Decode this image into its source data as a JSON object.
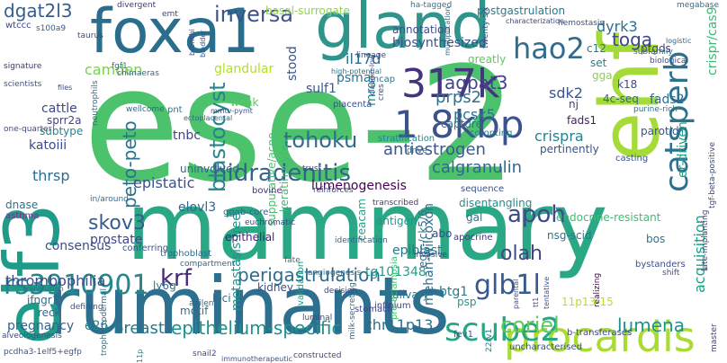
{
  "words": [
    {
      "text": "ese-2",
      "color": "#4cc26c"
    },
    {
      "text": "mammary",
      "color": "#2aa784"
    },
    {
      "text": "ruminants",
      "color": "#2c6f8e"
    },
    {
      "text": "gland",
      "color": "#2f958c"
    },
    {
      "text": "foxa1",
      "color": "#2a6e8d"
    },
    {
      "text": "elf3",
      "color": "#1f9b8a"
    },
    {
      "text": "ehf",
      "color": "#a5db36"
    },
    {
      "text": "317k",
      "color": "#46337e"
    },
    {
      "text": "procardis",
      "color": "#a9dc33"
    },
    {
      "text": "catsperb",
      "color": "#2c728e"
    },
    {
      "text": "hao2",
      "color": "#2f6c8e"
    },
    {
      "text": "rs3910901",
      "color": "#24868e"
    },
    {
      "text": "1 8kbp",
      "color": "#3b528b"
    },
    {
      "text": "hidradenitis",
      "color": "#33628d"
    },
    {
      "text": "glb1l",
      "color": "#38598c"
    },
    {
      "text": "scube2",
      "color": "#22a884"
    },
    {
      "text": "breast",
      "color": "#2a788e"
    },
    {
      "text": "epithelium-specific",
      "color": "#21918c"
    },
    {
      "text": "perigastrulation",
      "color": "#2f6b8e"
    },
    {
      "text": "coriel",
      "color": "#5ec962"
    },
    {
      "text": "lumena",
      "color": "#20928c"
    },
    {
      "text": "apoh",
      "color": "#3e4a89"
    },
    {
      "text": "olah",
      "color": "#3f4788"
    },
    {
      "text": "tohoku",
      "color": "#2e6f8e"
    },
    {
      "text": "antiestrogen",
      "color": "#38588c"
    },
    {
      "text": "krf",
      "color": "#482878"
    },
    {
      "text": "thrombophilia",
      "color": "#3e4c8a"
    },
    {
      "text": "skov3",
      "color": "#365c8d"
    },
    {
      "text": "inversa",
      "color": "#3b528b"
    },
    {
      "text": "dgat2l3",
      "color": "#355f8d"
    },
    {
      "text": "blastocyst",
      "color": "#25848e"
    },
    {
      "text": "peto-peto",
      "color": "#2c728e"
    },
    {
      "text": "agpat3",
      "color": "#414487"
    },
    {
      "text": "prps2",
      "color": "#2d718e"
    },
    {
      "text": "pcsk5",
      "color": "#2b758e"
    },
    {
      "text": "sdk2",
      "color": "#3a548c"
    },
    {
      "text": "toga",
      "color": "#3f4889"
    },
    {
      "text": "dyrk3",
      "color": "#2e6e8e"
    },
    {
      "text": "crispra",
      "color": "#27808e"
    },
    {
      "text": "calgranulin",
      "color": "#31688e"
    },
    {
      "text": "lumenogenesis",
      "color": "#440154"
    },
    {
      "text": "epistatic",
      "color": "#3b518b"
    },
    {
      "text": "camden",
      "color": "#7ad151"
    },
    {
      "text": "cattle",
      "color": "#3e4989"
    },
    {
      "text": "katoiii",
      "color": "#3e4989"
    },
    {
      "text": "thrsp",
      "color": "#2e6d8e"
    },
    {
      "text": "tnbc",
      "color": "#414487"
    },
    {
      "text": "consensus",
      "color": "#3d4d8a"
    },
    {
      "text": "prostate",
      "color": "#3f4788"
    },
    {
      "text": "elovl3",
      "color": "#31678e"
    },
    {
      "text": "stood",
      "color": "#3a538b"
    },
    {
      "text": "sulf1",
      "color": "#38588c"
    },
    {
      "text": "il17d",
      "color": "#2d708e"
    },
    {
      "text": "psma",
      "color": "#2c728e"
    },
    {
      "text": "mro",
      "color": "#24878e"
    },
    {
      "text": "metastasis-free",
      "color": "#21918c"
    },
    {
      "text": "tg101348",
      "color": "#1f9e89"
    },
    {
      "text": "btg1",
      "color": "#2a778e"
    },
    {
      "text": "acquisition",
      "color": "#1fa088"
    },
    {
      "text": "er-driven",
      "color": "#1fa187"
    },
    {
      "text": "crispr/cas9",
      "color": "#3aba76"
    },
    {
      "text": "epiblast",
      "color": "#2a788e"
    },
    {
      "text": "mehan-wilcoxon",
      "color": "#2f6c8e"
    },
    {
      "text": "e26",
      "color": "#25838e"
    },
    {
      "text": "chr11p13",
      "color": "#2e6e8e"
    },
    {
      "text": "biosynthesized",
      "color": "#3b518b"
    },
    {
      "text": "annotation",
      "color": "#3e4c8a"
    },
    {
      "text": "basal-surrogate",
      "color": "#8fd744"
    },
    {
      "text": "glandular",
      "color": "#b5de2b"
    },
    {
      "text": "sprr2a",
      "color": "#3f4788"
    },
    {
      "text": "subtype",
      "color": "#24868e"
    },
    {
      "text": "fads2",
      "color": "#2f6b8e"
    },
    {
      "text": "fads1",
      "color": "#481a6c"
    },
    {
      "text": "nj",
      "color": "#443a83"
    },
    {
      "text": "parotid",
      "color": "#3b528b"
    },
    {
      "text": "postgastrulation",
      "color": "#2a788e"
    },
    {
      "text": "c12",
      "color": "#2a778e"
    },
    {
      "text": "ptgds",
      "color": "#433e85"
    },
    {
      "text": "set",
      "color": "#26828e"
    },
    {
      "text": "k18",
      "color": "#3f4889"
    },
    {
      "text": "4c-seq",
      "color": "#31688e"
    },
    {
      "text": "suppurative/acne",
      "color": "#48c16e"
    },
    {
      "text": "keratinocytes",
      "color": "#3cbb75"
    },
    {
      "text": "antigen",
      "color": "#1f968b"
    },
    {
      "text": "uninvolved",
      "color": "#32658e"
    },
    {
      "text": "dnase",
      "color": "#2c728e"
    },
    {
      "text": "weak",
      "color": "#5ec962"
    },
    {
      "text": "pertinently",
      "color": "#3b528b"
    },
    {
      "text": "ceacam",
      "color": "#21a585"
    },
    {
      "text": "disentangling",
      "color": "#228c8d"
    },
    {
      "text": "nsg-scid",
      "color": "#2b758e"
    },
    {
      "text": "endocrine-resistant",
      "color": "#3fbc73"
    },
    {
      "text": "bos",
      "color": "#2b748e"
    },
    {
      "text": "psp",
      "color": "#1f9a8a"
    },
    {
      "text": "11p13-15",
      "color": "#b8de29"
    },
    {
      "text": "egfr-/ck5/6",
      "color": "#2e6f8e"
    },
    {
      "text": "infinium",
      "color": "#414487"
    },
    {
      "text": "salivary",
      "color": "#2a778e"
    },
    {
      "text": "fev1",
      "color": "#39558c"
    },
    {
      "text": "pregnancy",
      "color": "#33638d"
    },
    {
      "text": "reck",
      "color": "#2f6b8e"
    },
    {
      "text": "ifngr1",
      "color": "#2e6e8e"
    },
    {
      "text": "ly6g",
      "color": "#2c728e"
    },
    {
      "text": "loci",
      "color": "#2c718e"
    },
    {
      "text": "motif",
      "color": "#2d708e"
    },
    {
      "text": "kidney",
      "color": "#3d4e8a"
    },
    {
      "text": "stomach",
      "color": "#404688"
    },
    {
      "text": "trophoblast",
      "color": "#2f6c8e"
    },
    {
      "text": "epithelial",
      "color": "#481f70"
    },
    {
      "text": "bovine",
      "color": "#45337d"
    },
    {
      "text": "gal",
      "color": "#2c728e"
    },
    {
      "text": "apocrine",
      "color": "#453781"
    },
    {
      "text": "abo",
      "color": "#3f4788"
    },
    {
      "text": "capture",
      "color": "#2b748e"
    },
    {
      "text": "co-opting",
      "color": "#27808e"
    },
    {
      "text": "casting",
      "color": "#3b528b"
    },
    {
      "text": "bystanders",
      "color": "#3d4e8a"
    },
    {
      "text": "b-transferases",
      "color": "#404688"
    },
    {
      "text": "uncharacterised",
      "color": "#3e4a89"
    },
    {
      "text": "wtccc",
      "color": "#3f4788"
    },
    {
      "text": "s100a9",
      "color": "#38598c"
    },
    {
      "text": "one-quarter",
      "color": "#3e4c8a"
    },
    {
      "text": "scientists",
      "color": "#3b528b"
    },
    {
      "text": "asthma",
      "color": "#7d2f8a"
    },
    {
      "text": "alveologenesis",
      "color": "#3e4a89"
    },
    {
      "text": "pcdha3-1elf5+egfp",
      "color": "#3b528b"
    },
    {
      "text": "wellcome",
      "color": "#31688e"
    },
    {
      "text": "pnt",
      "color": "#2a788e"
    },
    {
      "text": "fgf1",
      "color": "#2d718e"
    },
    {
      "text": "chimaeras",
      "color": "#32658e"
    },
    {
      "text": "signature",
      "color": "#46307e"
    },
    {
      "text": "neutrophils",
      "color": "#2e6e8e"
    },
    {
      "text": "taurus",
      "color": "#3e4c8a"
    },
    {
      "text": "divergent",
      "color": "#453781"
    },
    {
      "text": "emt",
      "color": "#433e85"
    },
    {
      "text": "placenta",
      "color": "#3b528b"
    },
    {
      "text": "lineage",
      "color": "#3e4989"
    },
    {
      "text": "trust",
      "color": "#3f4788"
    },
    {
      "text": "stratification",
      "color": "#24868e"
    },
    {
      "text": "fate",
      "color": "#2a788e"
    },
    {
      "text": "validation",
      "color": "#1f9a8a"
    },
    {
      "text": "angiogenesis",
      "color": "#2c728e"
    },
    {
      "text": "decision",
      "color": "#3e4989"
    },
    {
      "text": "conferring",
      "color": "#3b528b"
    },
    {
      "text": "compartment",
      "color": "#31688e"
    },
    {
      "text": "identification",
      "color": "#33638d"
    },
    {
      "text": "invasive",
      "color": "#414487"
    },
    {
      "text": "defining",
      "color": "#3b528b"
    },
    {
      "text": "milk-secreting",
      "color": "#2f6c8e"
    },
    {
      "text": "agilent",
      "color": "#32658e"
    },
    {
      "text": "constructed",
      "color": "#414487"
    },
    {
      "text": "snail2",
      "color": "#3e4a89"
    },
    {
      "text": "22rv1",
      "color": "#2a788e"
    },
    {
      "text": "shift",
      "color": "#3b528b"
    },
    {
      "text": "realizing",
      "color": "#440154"
    },
    {
      "text": "megabase",
      "color": "#2e6e8e"
    },
    {
      "text": "hemostasis",
      "color": "#3b528b"
    },
    {
      "text": "logistic",
      "color": "#31688e"
    },
    {
      "text": "biological",
      "color": "#3e4a89"
    },
    {
      "text": "purine-rich",
      "color": "#2c728e"
    },
    {
      "text": "late-implanting",
      "color": "#414487"
    },
    {
      "text": "tgf-beta-positive",
      "color": "#3e4c8a"
    },
    {
      "text": "subfamily",
      "color": "#2a788e"
    },
    {
      "text": "greatly",
      "color": "#5ec962"
    },
    {
      "text": "gga",
      "color": "#86d549"
    },
    {
      "text": "ggab-core",
      "color": "#31688e"
    },
    {
      "text": "euchromatic",
      "color": "#414487"
    },
    {
      "text": "pre-eclampsia",
      "color": "#3fbc73"
    },
    {
      "text": "sequence",
      "color": "#3b528b"
    },
    {
      "text": "transcribed",
      "color": "#453781"
    },
    {
      "text": "reinforces",
      "color": "#3e4989"
    },
    {
      "text": "drive",
      "color": "#2e6e8e"
    },
    {
      "text": "in/around",
      "color": "#2e6e8e"
    },
    {
      "text": "bronchi",
      "color": "#3e4a89"
    },
    {
      "text": "bladder",
      "color": "#3b528b"
    },
    {
      "text": "characterization",
      "color": "#404688"
    },
    {
      "text": "high-potential",
      "color": "#2c728e"
    },
    {
      "text": "ectoplacental",
      "color": "#2f6c8e"
    },
    {
      "text": "mmtv-pymt",
      "color": "#3b528b"
    },
    {
      "text": "multiplication",
      "color": "#31688e"
    },
    {
      "text": "ha-tagged",
      "color": "#2a788e"
    },
    {
      "text": "twenty-six",
      "color": "#3e4c8a"
    },
    {
      "text": "lncap",
      "color": "#2c728e"
    },
    {
      "text": "claudin-low",
      "color": "#414487"
    },
    {
      "text": "cres",
      "color": "#3b528b"
    },
    {
      "text": "transfusion",
      "color": "#31688e"
    },
    {
      "text": "luminal",
      "color": "#3e4989"
    },
    {
      "text": "trophectodermal",
      "color": "#2e6e8e"
    },
    {
      "text": "immunotherapeutic",
      "color": "#3b528b"
    },
    {
      "text": "master",
      "color": "#414487"
    },
    {
      "text": "parental",
      "color": "#3e4c8a"
    },
    {
      "text": "tentative",
      "color": "#3b528b"
    },
    {
      "text": "tt1",
      "color": "#404688"
    },
    {
      "text": "files",
      "color": "#3e4a89"
    },
    {
      "text": "11p",
      "color": "#2a788e"
    }
  ]
}
